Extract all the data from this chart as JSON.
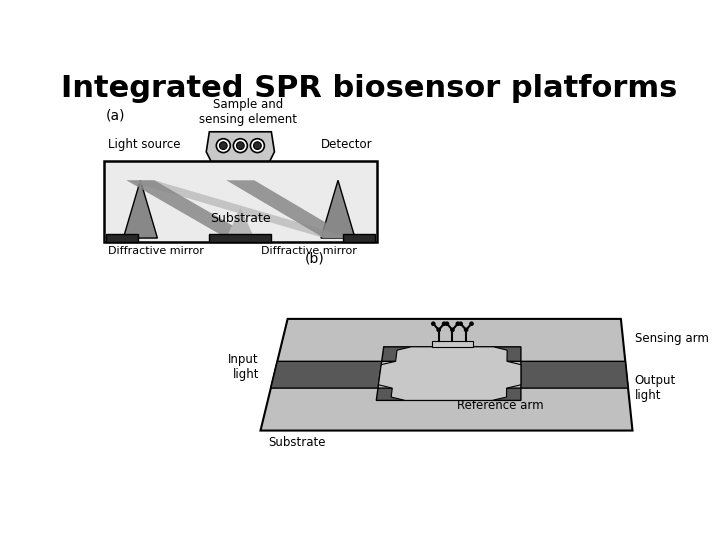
{
  "title": "Integrated SPR biosensor platforms",
  "title_fontsize": 22,
  "title_fontweight": "bold",
  "background_color": "#ffffff",
  "fig_width": 7.2,
  "fig_height": 5.4,
  "label_a": "(a)",
  "label_b": "(b)",
  "labels": {
    "light_source": "Light source",
    "detector": "Detector",
    "sample": "Sample and\nsensing element",
    "substrate_a": "Substrate",
    "diff_mirror_left": "Diffractive mirror",
    "diff_mirror_right": "Diffractive mirror",
    "input_light": "Input\nlight",
    "sensing_arm": "Sensing arm",
    "reference_arm": "Reference arm",
    "substrate_b": "Substrate",
    "output_light": "Output\nlight"
  },
  "colors": {
    "light_gray": "#e0e0e0",
    "medium_gray": "#a8a8a8",
    "dark_gray": "#707070",
    "darker_gray": "#505050",
    "black": "#000000",
    "white": "#ffffff",
    "box_fill": "#ebebeb",
    "triangle_light": "#b8b8b8",
    "triangle_dark": "#888888",
    "mirror_dark": "#282828",
    "sensing_element_fill": "#c8c8c8",
    "platform_fill": "#c0c0c0",
    "waveguide_fill": "#585858",
    "interior_fill": "#c8c8c8"
  }
}
